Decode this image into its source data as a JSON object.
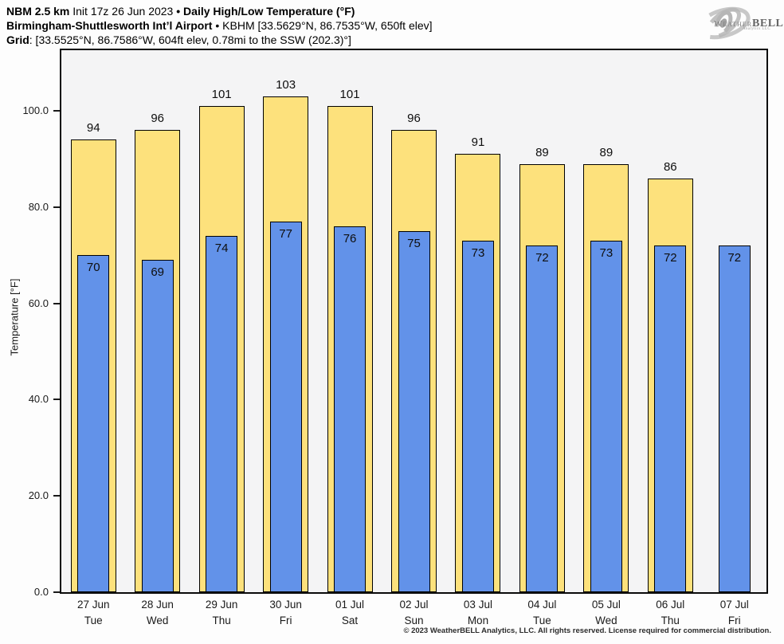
{
  "header": {
    "model": "NBM 2.5 km",
    "init": "Init 17z 26 Jun 2023",
    "bullet": "•",
    "product": "Daily High/Low Temperature (°F)",
    "station": "Birmingham-Shuttlesworth Int’l Airport",
    "station_bullet": "•",
    "station_details": "KBHM [33.5629°N, 86.7535°W, 650ft elev]",
    "grid_label": "Grid",
    "grid_details": ": [33.5525°N, 86.7586°W, 604ft elev, 0.78mi to the SSW (202.3)°]"
  },
  "logo": {
    "weather": "Weather",
    "bell": "BELL",
    "subtitle": "Analytics LLC"
  },
  "footer": {
    "copyright": "© 2023 WeatherBELL Analytics, LLC. All rights reserved. License required for commercial distribution."
  },
  "chart_data": {
    "type": "bar",
    "title": "Daily High/Low Temperature (°F)",
    "ylabel": "Temperature [°F]",
    "ylim": [
      0,
      112.6
    ],
    "yticks": [
      0,
      20,
      40,
      60,
      80,
      100
    ],
    "ytick_labels": [
      "0.0",
      "20.0",
      "40.0",
      "60.0",
      "80.0",
      "100.0"
    ],
    "grid": false,
    "legend_position": "none",
    "categories": [
      {
        "date": "27 Jun",
        "day": "Tue"
      },
      {
        "date": "28 Jun",
        "day": "Wed"
      },
      {
        "date": "29 Jun",
        "day": "Thu"
      },
      {
        "date": "30 Jun",
        "day": "Fri"
      },
      {
        "date": "01 Jul",
        "day": "Sat"
      },
      {
        "date": "02 Jul",
        "day": "Sun"
      },
      {
        "date": "03 Jul",
        "day": "Mon"
      },
      {
        "date": "04 Jul",
        "day": "Tue"
      },
      {
        "date": "05 Jul",
        "day": "Wed"
      },
      {
        "date": "06 Jul",
        "day": "Thu"
      },
      {
        "date": "07 Jul",
        "day": "Fri"
      }
    ],
    "series": [
      {
        "name": "Daily High",
        "color": "#fde17c",
        "values": [
          94,
          96,
          101,
          103,
          101,
          96,
          91,
          89,
          89,
          86,
          null
        ]
      },
      {
        "name": "Daily Low",
        "color": "#6292e9",
        "values": [
          70,
          69,
          74,
          77,
          76,
          75,
          73,
          72,
          73,
          72,
          72
        ]
      }
    ],
    "colors": {
      "high_fill": "#fde17c",
      "low_fill": "#6292e9",
      "bar_outline": "#000000",
      "plot_background": "#f4f4f5"
    }
  }
}
